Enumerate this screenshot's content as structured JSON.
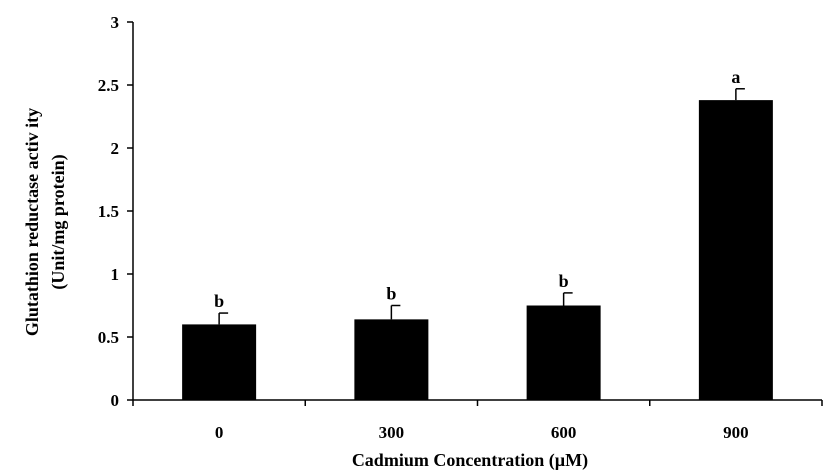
{
  "chart_data": {
    "type": "bar",
    "title": "",
    "xlabel": "Cadmium Concentration (µM)",
    "ylabel_lines": [
      "Glutathion reductase activ ity",
      "(Unit/mg protein)"
    ],
    "categories": [
      "0",
      "300",
      "600",
      "900"
    ],
    "values": [
      0.6,
      0.64,
      0.75,
      2.38
    ],
    "errors": [
      0.09,
      0.11,
      0.1,
      0.09
    ],
    "significance_letters": [
      "b",
      "b",
      "b",
      "a"
    ],
    "ylim": [
      0,
      3
    ],
    "yticks": [
      "0",
      "0.5",
      "1",
      "1.5",
      "2",
      "2.5",
      "3"
    ],
    "grid": false,
    "bar_color": "#000000"
  }
}
